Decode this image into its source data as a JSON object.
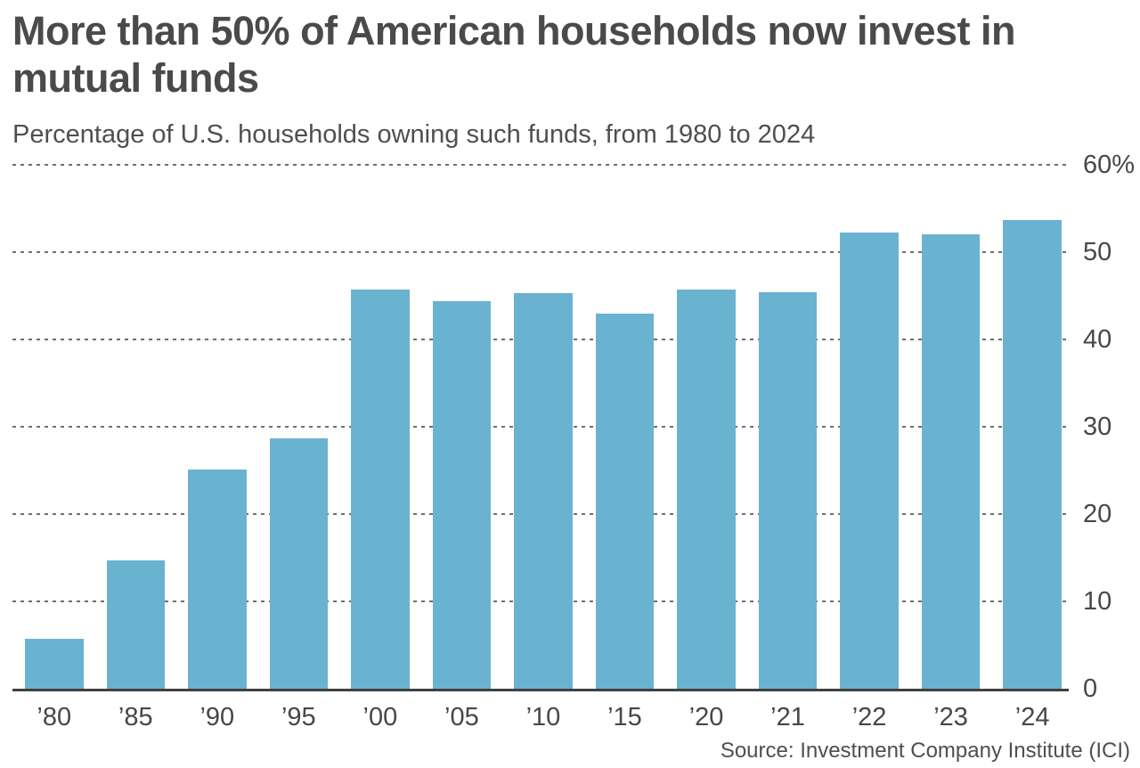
{
  "chart_data": {
    "type": "bar",
    "title": "More than 50% of American households now invest in mutual funds",
    "subtitle": "Percentage of U.S. households owning such funds, from 1980 to 2024",
    "source": "Source: Investment Company Institute (ICI)",
    "categories": [
      "’80",
      "’85",
      "’90",
      "’95",
      "’00",
      "’05",
      "’10",
      "’15",
      "’20",
      "’21",
      "’22",
      "’23",
      "’24"
    ],
    "values": [
      5.7,
      14.7,
      25.1,
      28.7,
      45.7,
      44.4,
      45.3,
      43.0,
      45.7,
      45.4,
      52.3,
      52.0,
      53.7
    ],
    "xlabel": "",
    "ylabel": "",
    "ylim": [
      0,
      60
    ],
    "ytick_interval": 10,
    "yticks": [
      "60%",
      "50",
      "40",
      "30",
      "20",
      "10",
      "0"
    ],
    "legend": "none",
    "grid": "horizontal-dashed",
    "colors": {
      "bar": "#6ab3d0",
      "axis": "#414141",
      "grid": "#6f6f6f",
      "text": "#4a4a4a"
    }
  }
}
